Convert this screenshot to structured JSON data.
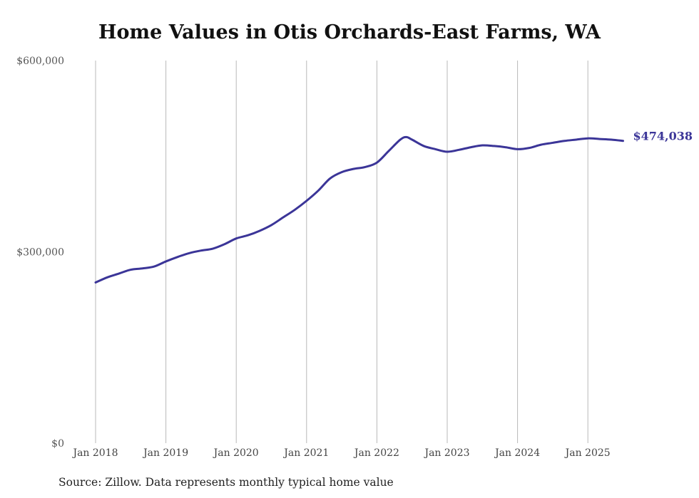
{
  "chart_data": {
    "type": "line",
    "title": "Home Values in Otis Orchards-East Farms, WA",
    "source": "Source: Zillow. Data represents monthly typical home value",
    "xlabel": "",
    "ylabel": "",
    "ylim": [
      0,
      600000
    ],
    "y_ticks": [
      0,
      300000,
      600000
    ],
    "y_tick_labels": [
      "$0",
      "$300,000",
      "$600,000"
    ],
    "x_tick_labels": [
      "Jan 2018",
      "Jan 2019",
      "Jan 2020",
      "Jan 2021",
      "Jan 2022",
      "Jan 2023",
      "Jan 2024",
      "Jan 2025"
    ],
    "x_ticks": [
      "2018-01",
      "2019-01",
      "2020-01",
      "2021-01",
      "2022-01",
      "2023-01",
      "2024-01",
      "2025-01"
    ],
    "grid": "vertical",
    "line_color": "#3b3598",
    "end_label": "$474,038",
    "series": [
      {
        "x": [
          "2018-01",
          "2018-03",
          "2018-05",
          "2018-07",
          "2018-09",
          "2018-11",
          "2019-01",
          "2019-03",
          "2019-05",
          "2019-07",
          "2019-09",
          "2019-11",
          "2020-01",
          "2020-03",
          "2020-05",
          "2020-07",
          "2020-09",
          "2020-11",
          "2021-01",
          "2021-03",
          "2021-05",
          "2021-07",
          "2021-09",
          "2021-11",
          "2022-01",
          "2022-03",
          "2022-05",
          "2022-06",
          "2022-07",
          "2022-09",
          "2022-11",
          "2023-01",
          "2023-03",
          "2023-05",
          "2023-07",
          "2023-09",
          "2023-11",
          "2024-01",
          "2024-03",
          "2024-05",
          "2024-07",
          "2024-09",
          "2024-11",
          "2025-01",
          "2025-03",
          "2025-05",
          "2025-07"
        ],
        "values": [
          252000,
          260000,
          266000,
          272000,
          274000,
          277000,
          285000,
          292000,
          298000,
          302000,
          305000,
          312000,
          321000,
          326000,
          333000,
          342000,
          354000,
          366000,
          380000,
          396000,
          415000,
          425000,
          430000,
          433000,
          440000,
          458000,
          476000,
          480000,
          476000,
          466000,
          461000,
          457000,
          460000,
          464000,
          467000,
          466000,
          464000,
          461000,
          463000,
          468000,
          471000,
          474000,
          476000,
          478000,
          477000,
          476000,
          474038
        ]
      }
    ]
  }
}
